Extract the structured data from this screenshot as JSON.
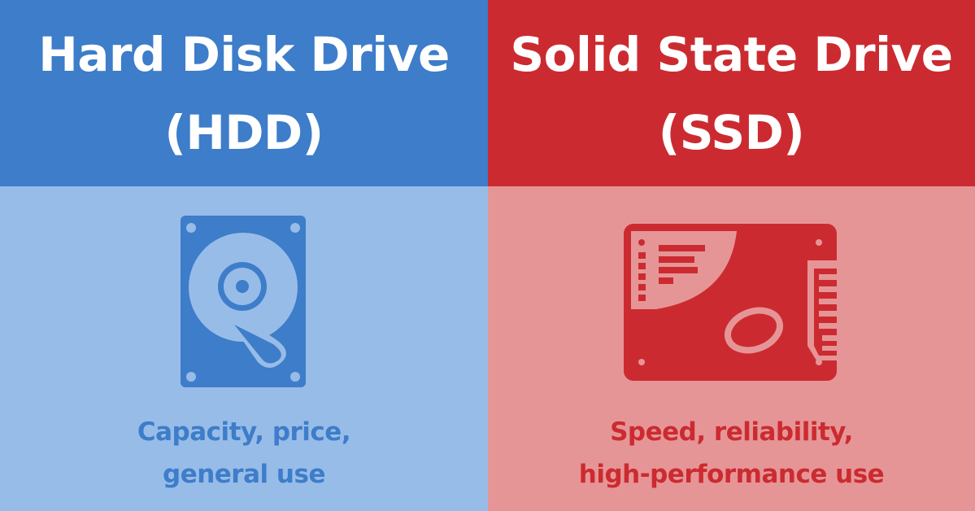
{
  "colors": {
    "hdd_dark": "#3d7dc9",
    "hdd_light": "#98bce8",
    "ssd_dark": "#cb2b30",
    "ssd_light": "#e69597"
  },
  "hdd": {
    "title_line1": "Hard Disk Drive",
    "title_line2": "(HDD)",
    "icon": "hard-disk-icon",
    "caption_line1": "Capacity, price,",
    "caption_line2": "general use"
  },
  "ssd": {
    "title_line1": "Solid State Drive",
    "title_line2": "(SSD)",
    "icon": "solid-state-drive-icon",
    "caption_line1": "Speed, reliability,",
    "caption_line2": "high-performance use"
  }
}
